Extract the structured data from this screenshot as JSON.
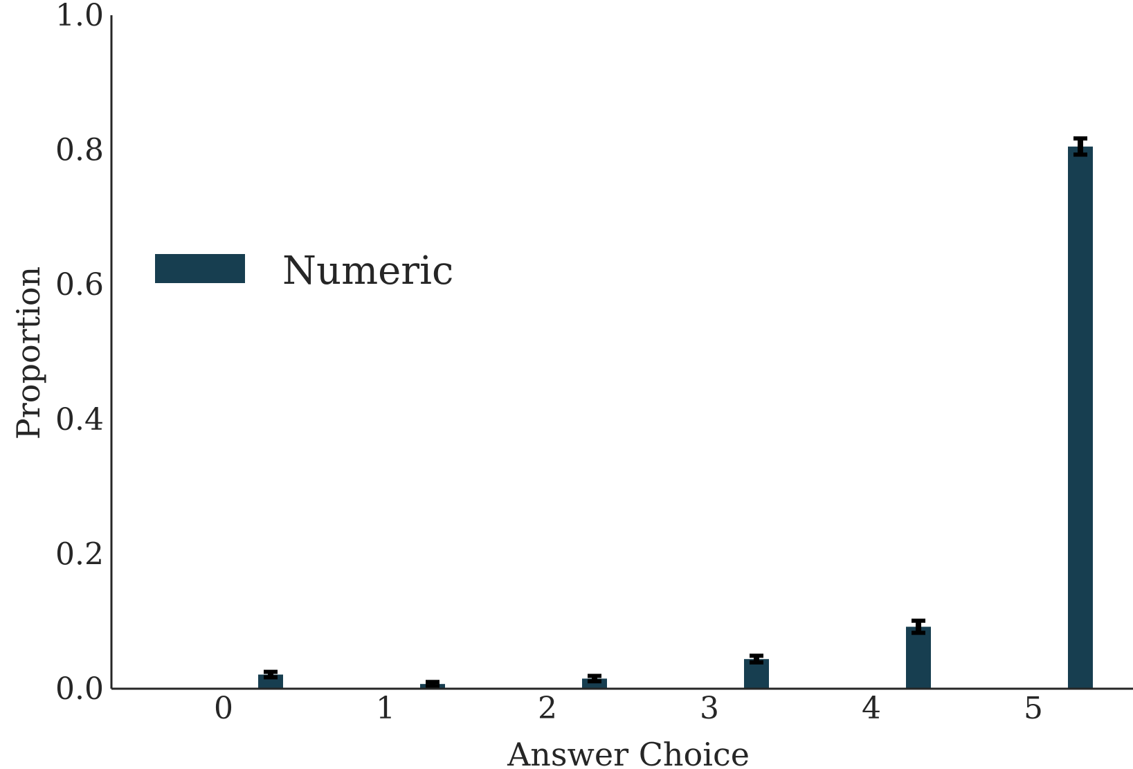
{
  "colors": {
    "bar": "#173e50",
    "errorbar": "#000000",
    "axis": "#262626",
    "background": "#ffffff"
  },
  "chart_data": {
    "type": "bar",
    "title": "",
    "xlabel": "Answer Choice",
    "ylabel": "Proportion",
    "categories": [
      "0",
      "1",
      "2",
      "3",
      "4",
      "5"
    ],
    "ylim": [
      0,
      1.0
    ],
    "yticks": [
      "0.0",
      "0.2",
      "0.4",
      "0.6",
      "0.8",
      "1.0"
    ],
    "grid": false,
    "legend_placement": "center-left",
    "series": [
      {
        "name": "Numeric",
        "values": [
          0.021,
          0.007,
          0.015,
          0.044,
          0.092,
          0.805
        ],
        "error": [
          0.004,
          0.003,
          0.004,
          0.005,
          0.009,
          0.012
        ]
      }
    ]
  }
}
